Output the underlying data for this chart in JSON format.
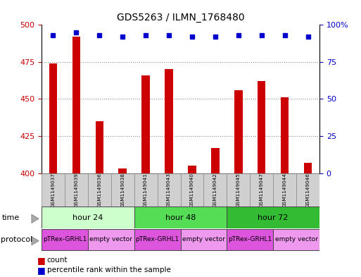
{
  "title": "GDS5263 / ILMN_1768480",
  "samples": [
    "GSM1149037",
    "GSM1149039",
    "GSM1149036",
    "GSM1149038",
    "GSM1149041",
    "GSM1149043",
    "GSM1149040",
    "GSM1149042",
    "GSM1149045",
    "GSM1149047",
    "GSM1149044",
    "GSM1149046"
  ],
  "counts": [
    474,
    492,
    435,
    403,
    466,
    470,
    405,
    417,
    456,
    462,
    451,
    407
  ],
  "percentile_ranks": [
    93,
    95,
    93,
    92,
    93,
    93,
    92,
    92,
    93,
    93,
    93,
    92
  ],
  "ylim_left": [
    400,
    500
  ],
  "ylim_right": [
    0,
    100
  ],
  "yticks_left": [
    400,
    425,
    450,
    475,
    500
  ],
  "yticks_right": [
    0,
    25,
    50,
    75,
    100
  ],
  "bar_color": "#cc0000",
  "dot_color": "#0000cc",
  "time_groups": [
    {
      "label": "hour 24",
      "start": 0,
      "end": 4,
      "color": "#ccffcc"
    },
    {
      "label": "hour 48",
      "start": 4,
      "end": 8,
      "color": "#55dd55"
    },
    {
      "label": "hour 72",
      "start": 8,
      "end": 12,
      "color": "#33bb33"
    }
  ],
  "protocol_groups": [
    {
      "label": "pTRex-GRHL1",
      "start": 0,
      "end": 2,
      "color": "#dd55dd"
    },
    {
      "label": "empty vector",
      "start": 2,
      "end": 4,
      "color": "#ee99ee"
    },
    {
      "label": "pTRex-GRHL1",
      "start": 4,
      "end": 6,
      "color": "#dd55dd"
    },
    {
      "label": "empty vector",
      "start": 6,
      "end": 8,
      "color": "#ee99ee"
    },
    {
      "label": "pTRex-GRHL1",
      "start": 8,
      "end": 10,
      "color": "#dd55dd"
    },
    {
      "label": "empty vector",
      "start": 10,
      "end": 12,
      "color": "#ee99ee"
    }
  ],
  "bg_color": "#ffffff",
  "sample_bg": "#d0d0d0",
  "grid_color": "#000000"
}
